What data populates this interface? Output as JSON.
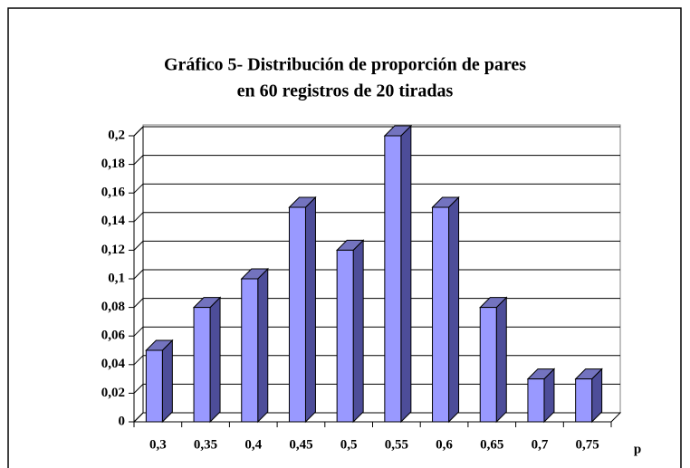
{
  "chart_data": {
    "type": "bar3d",
    "title_lines": [
      "Gráfico 5- Distribución de proporción de pares",
      "en 60 registros de 20 tiradas"
    ],
    "x_label": "p",
    "categories": [
      "0,3",
      "0,35",
      "0,4",
      "0,45",
      "0,5",
      "0,55",
      "0,6",
      "0,65",
      "0,7",
      "0,75"
    ],
    "values": [
      0.05,
      0.08,
      0.1,
      0.15,
      0.12,
      0.2,
      0.15,
      0.08,
      0.03,
      0.03
    ],
    "color": "#9999ff",
    "ylim": [
      0,
      0.2
    ],
    "yticks": [
      0,
      {
        "value": 0.02,
        "label": "0,02"
      },
      {
        "value": 0.04,
        "label": "0,04"
      },
      {
        "value": 0.06,
        "label": "0,06"
      },
      {
        "value": 0.08,
        "label": "0,08"
      },
      {
        "value": 0.1,
        "label": "0,1"
      },
      {
        "value": 0.12,
        "label": "0,12"
      },
      {
        "value": 0.14,
        "label": "0,14"
      },
      {
        "value": 0.16,
        "label": "0,16"
      },
      {
        "value": 0.18,
        "label": "0,18"
      },
      {
        "value": 0.2,
        "label": "0,2"
      }
    ],
    "grid": true
  }
}
